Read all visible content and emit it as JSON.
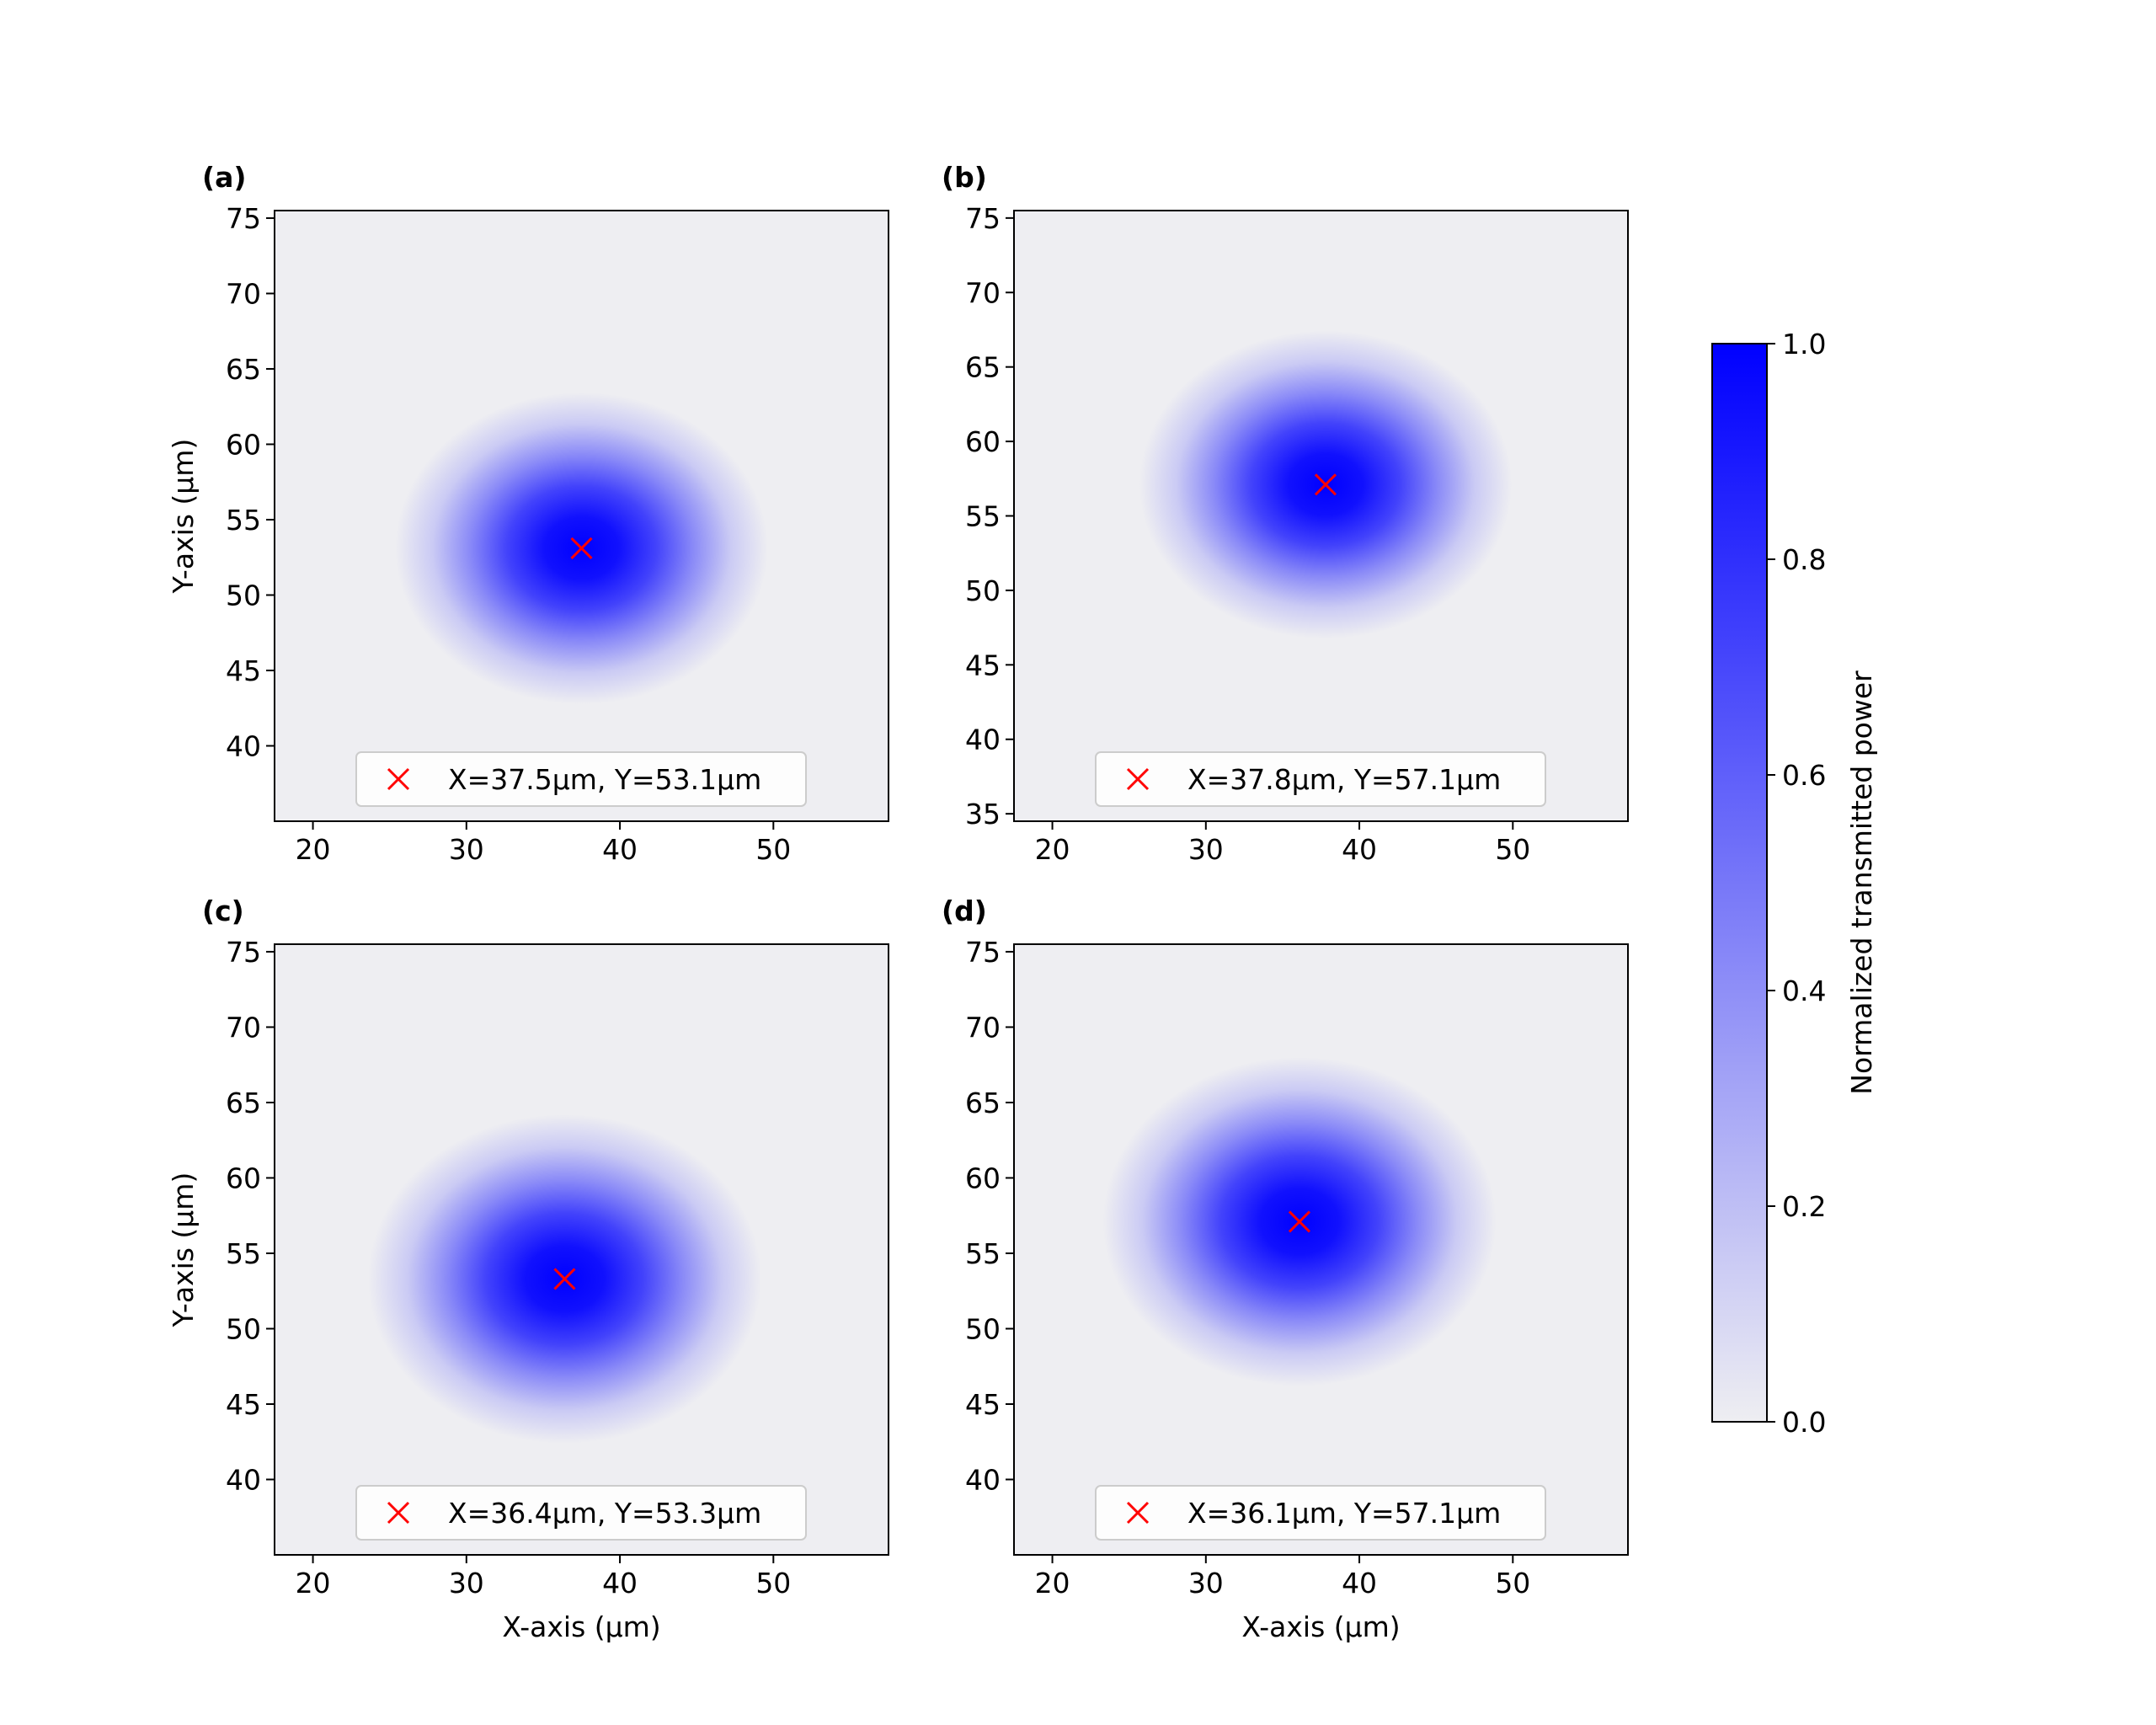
{
  "chart_data": [
    {
      "type": "heatmap",
      "panel_label": "(a)",
      "xlabel": "",
      "ylabel": "Y-axis (µm)",
      "xlim": [
        17.5,
        57.5
      ],
      "ylim": [
        35,
        75.5
      ],
      "xticks": [
        20,
        30,
        40,
        50
      ],
      "yticks": [
        40,
        45,
        50,
        55,
        60,
        65,
        70,
        75
      ],
      "peak": {
        "x": 37.5,
        "y": 53.1
      },
      "spot_radius": 9.0,
      "legend": "X=37.5µm, Y=53.1µm",
      "grid": false
    },
    {
      "type": "heatmap",
      "panel_label": "(b)",
      "xlabel": "",
      "ylabel": "",
      "xlim": [
        17.5,
        57.5
      ],
      "ylim": [
        34.5,
        75.5
      ],
      "xticks": [
        20,
        30,
        40,
        50
      ],
      "yticks": [
        35,
        40,
        45,
        50,
        55,
        60,
        65,
        70,
        75
      ],
      "peak": {
        "x": 37.8,
        "y": 57.1
      },
      "spot_radius": 9.0,
      "legend": "X=37.8µm, Y=57.1µm",
      "grid": false
    },
    {
      "type": "heatmap",
      "panel_label": "(c)",
      "xlabel": "X-axis (µm)",
      "ylabel": "Y-axis (µm)",
      "xlim": [
        17.5,
        57.5
      ],
      "ylim": [
        35,
        75.5
      ],
      "xticks": [
        20,
        30,
        40,
        50
      ],
      "yticks": [
        40,
        45,
        50,
        55,
        60,
        65,
        70,
        75
      ],
      "peak": {
        "x": 36.4,
        "y": 53.3
      },
      "spot_radius": 9.5,
      "legend": "X=36.4µm, Y=53.3µm",
      "grid": false
    },
    {
      "type": "heatmap",
      "panel_label": "(d)",
      "xlabel": "X-axis (µm)",
      "ylabel": "",
      "xlim": [
        17.5,
        57.5
      ],
      "ylim": [
        35,
        75.5
      ],
      "xticks": [
        20,
        30,
        40,
        50
      ],
      "yticks": [
        40,
        45,
        50,
        55,
        60,
        65,
        70,
        75
      ],
      "peak": {
        "x": 36.1,
        "y": 57.1
      },
      "spot_radius": 9.5,
      "legend": "X=36.1µm, Y=57.1µm",
      "grid": false
    }
  ],
  "colorbar": {
    "label": "Normalized transmitted power",
    "range": [
      0.0,
      1.0
    ],
    "ticks": [
      "0.0",
      "0.2",
      "0.4",
      "0.6",
      "0.8",
      "1.0"
    ],
    "color_low": "#eeeef2",
    "color_high": "#0000ff"
  },
  "marker_color": "#ff0000"
}
